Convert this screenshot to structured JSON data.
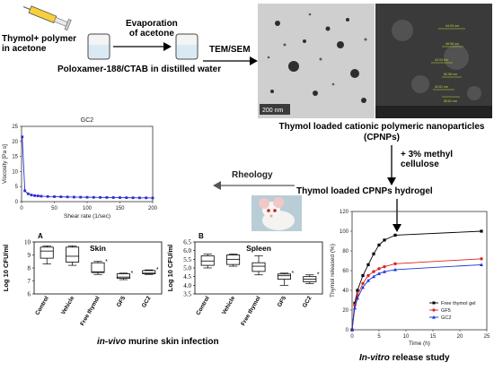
{
  "prep": {
    "input_label": "Thymol+ polymer\nin acetone",
    "evap_label": "Evaporation\nof acetone",
    "tem_label": "TEM/SEM",
    "medium_label": "Poloxamer-188/CTAB in distilled water"
  },
  "micrographs": {
    "tem_scale": "200 nm",
    "sem_measures": [
      "44.93 nm",
      "48.56 nm",
      "43.03 nm",
      "60.58 nm",
      "42.61 nm",
      "55.61 nm"
    ]
  },
  "cpnps_label": "Thymol loaded cationic polymeric nanoparticles\n(CPNPs)",
  "methylcellulose_label": "+ 3% methyl\ncellulose",
  "hydrogel_label": "Thymol loaded CPNPs hydrogel",
  "rheology_label": "Rheology",
  "invivo_label": {
    "italic": "in-vivo",
    "rest": " murine skin infection"
  },
  "invitro_label": {
    "italic": "In-vitro",
    "rest": " release study"
  },
  "charts": [
    {
      "chart_data": {
        "type": "line",
        "title": "GC2",
        "xlabel": "Shear rate (1/sec)",
        "ylabel": "Viscosity [Pa s]",
        "xlim": [
          0,
          200
        ],
        "ylim": [
          0,
          25
        ],
        "xticks": [
          "0",
          "50",
          "100",
          "150",
          "200"
        ],
        "yticks": [
          "0",
          "5",
          "10",
          "15",
          "20",
          "25"
        ],
        "x": [
          1,
          5,
          10,
          15,
          20,
          25,
          30,
          40,
          50,
          60,
          70,
          80,
          90,
          100,
          110,
          120,
          130,
          140,
          150,
          160,
          170,
          180,
          190,
          200
        ],
        "y": [
          21.5,
          3.6,
          2.6,
          2.2,
          2.0,
          1.9,
          1.8,
          1.7,
          1.65,
          1.6,
          1.55,
          1.5,
          1.48,
          1.45,
          1.42,
          1.4,
          1.38,
          1.35,
          1.33,
          1.3,
          1.28,
          1.26,
          1.25,
          1.22
        ],
        "color": "#2a2ad4"
      }
    },
    {
      "chart_data": {
        "type": "box",
        "panel": "A",
        "title": "Skin",
        "ylabel": "Log 10 CFU/ml",
        "categories": [
          "Control",
          "Vehicle",
          "Free thymol",
          "GF5",
          "GC2"
        ],
        "ylim": [
          6,
          10
        ],
        "yticks": [
          "6",
          "7",
          "8",
          "9",
          "10"
        ],
        "boxes": [
          {
            "min": 8.3,
            "q1": 8.75,
            "median": 9.3,
            "q3": 9.6,
            "max": 9.7,
            "star": false
          },
          {
            "min": 8.2,
            "q1": 8.45,
            "median": 8.9,
            "q3": 9.6,
            "max": 9.7,
            "star": false
          },
          {
            "min": 7.5,
            "q1": 7.65,
            "median": 7.7,
            "q3": 8.4,
            "max": 8.5,
            "star": true
          },
          {
            "min": 7.1,
            "q1": 7.2,
            "median": 7.3,
            "q3": 7.55,
            "max": 7.6,
            "star": true
          },
          {
            "min": 7.5,
            "q1": 7.55,
            "median": 7.6,
            "q3": 7.8,
            "max": 7.85,
            "star": true
          }
        ]
      }
    },
    {
      "chart_data": {
        "type": "box",
        "panel": "B",
        "title": "Spleen",
        "ylabel": "Log 10 CFU/ml",
        "categories": [
          "Control",
          "Vehicle",
          "Free thymol",
          "GF5",
          "GC2"
        ],
        "ylim": [
          3.5,
          6.5
        ],
        "yticks": [
          "3.5",
          "4.0",
          "4.5",
          "5.0",
          "5.5",
          "6.0",
          "6.5"
        ],
        "boxes": [
          {
            "min": 5.0,
            "q1": 5.15,
            "median": 5.4,
            "q3": 5.7,
            "max": 5.8,
            "star": false
          },
          {
            "min": 5.1,
            "q1": 5.2,
            "median": 5.5,
            "q3": 5.75,
            "max": 5.8,
            "star": false
          },
          {
            "min": 4.6,
            "q1": 4.8,
            "median": 5.1,
            "q3": 5.3,
            "max": 5.7,
            "star": false
          },
          {
            "min": 4.0,
            "q1": 4.35,
            "median": 4.55,
            "q3": 4.65,
            "max": 4.7,
            "star": true
          },
          {
            "min": 4.1,
            "q1": 4.2,
            "median": 4.35,
            "q3": 4.5,
            "max": 4.6,
            "star": true
          }
        ]
      }
    },
    {
      "chart_data": {
        "type": "line",
        "xlabel": "Time (h)",
        "ylabel": "Thymol released (%)",
        "xlim": [
          0,
          25
        ],
        "ylim": [
          0,
          120
        ],
        "xticks": [
          "0",
          "5",
          "10",
          "15",
          "20",
          "25"
        ],
        "yticks": [
          "0",
          "20",
          "40",
          "60",
          "80",
          "100",
          "120"
        ],
        "legend_position": "bottom-right",
        "series": [
          {
            "name": "Free thymol gel",
            "color": "#000000",
            "marker": "square",
            "x": [
              0,
              0.5,
              1,
              2,
              3,
              4,
              5,
              6,
              8,
              24
            ],
            "y": [
              0,
              27,
              40,
              55,
              66,
              77,
              86,
              91,
              96,
              100
            ]
          },
          {
            "name": "GF5",
            "color": "#e02020",
            "marker": "circle",
            "x": [
              0,
              0.5,
              1,
              2,
              3,
              4,
              5,
              6,
              8,
              24
            ],
            "y": [
              0,
              25,
              35,
              47,
              55,
              59,
              62,
              64,
              67,
              72
            ]
          },
          {
            "name": "GC2",
            "color": "#1a35d8",
            "marker": "triangle",
            "x": [
              0,
              0.5,
              1,
              2,
              3,
              4,
              5,
              6,
              8,
              24
            ],
            "y": [
              0,
              22,
              32,
              43,
              50,
              54,
              57,
              59,
              61,
              66
            ]
          }
        ]
      }
    }
  ]
}
